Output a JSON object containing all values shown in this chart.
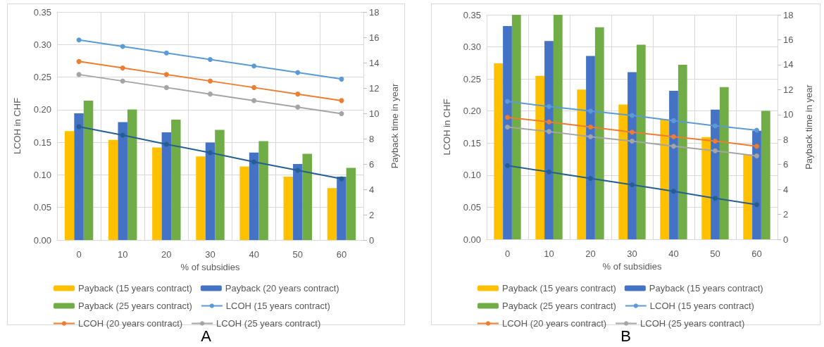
{
  "chart_data": [
    {
      "type": "bar",
      "title": "A",
      "xlabel": "% of subsidies",
      "ylabel": "LCOH in CHF",
      "y2label": "Payback time in year",
      "categories": [
        "0",
        "10",
        "20",
        "30",
        "40",
        "50",
        "60"
      ],
      "series": [
        {
          "name": "Payback (15 years contract)",
          "axis": "y2",
          "color": "#ffc000",
          "values": [
            8.6,
            7.9,
            7.3,
            6.6,
            5.8,
            5.0,
            4.1
          ]
        },
        {
          "name": "Payback (20 years contract)",
          "axis": "y2",
          "color": "#4472c4",
          "values": [
            10.0,
            9.3,
            8.5,
            7.7,
            6.9,
            6.0,
            5.0
          ]
        },
        {
          "name": "Payback (25 years contract)",
          "axis": "y2",
          "color": "#70ad47",
          "values": [
            11.0,
            10.3,
            9.5,
            8.7,
            7.8,
            6.8,
            5.7
          ]
        },
        {
          "name": "LCOH (15 years contract)",
          "type": "line",
          "color": "#5b9bd5",
          "values": [
            0.307,
            0.297,
            0.287,
            0.277,
            0.267,
            0.257,
            0.247
          ]
        },
        {
          "name": "LCOH (20 years contract)",
          "type": "line",
          "color": "#ed7d31",
          "values": [
            0.274,
            0.264,
            0.254,
            0.244,
            0.234,
            0.224,
            0.214
          ]
        },
        {
          "name": "LCOH (25 years contract)",
          "type": "line",
          "color": "#a5a5a5",
          "values": [
            0.254,
            0.244,
            0.234,
            0.224,
            0.214,
            0.204,
            0.194
          ]
        },
        {
          "type": "line",
          "color": "#255e91",
          "values": [
            0.174,
            0.161,
            0.147,
            0.134,
            0.12,
            0.107,
            0.094
          ]
        }
      ],
      "ylim": [
        0,
        0.35
      ],
      "yticks": [
        {
          "value": 0,
          "label": "0.00"
        },
        {
          "value": 0.05,
          "label": "0.05"
        },
        {
          "value": 0.1,
          "label": "0.10"
        },
        {
          "value": 0.15,
          "label": "0.15"
        },
        {
          "value": 0.2,
          "label": "0.20"
        },
        {
          "value": 0.25,
          "label": "0.25"
        },
        {
          "value": 0.3,
          "label": "0.30"
        },
        {
          "value": 0.35,
          "label": "0.35"
        }
      ],
      "y2lim": [
        0,
        18
      ],
      "y2ticks": [
        0,
        2,
        4,
        6,
        8,
        10,
        12,
        14,
        16,
        18
      ],
      "grid": true,
      "legend": "bottom",
      "marker": "circle"
    },
    {
      "type": "bar",
      "title": "B",
      "xlabel": "% of subsidies",
      "ylabel": "LCOH in CHF",
      "y2label": "Payback time in year",
      "categories": [
        "0",
        "10",
        "20",
        "30",
        "40",
        "50",
        "60"
      ],
      "series": [
        {
          "name": "Payback (15 years contract)",
          "axis": "y2",
          "color": "#ffc000",
          "values": [
            14.1,
            13.1,
            12.0,
            10.8,
            9.6,
            8.2,
            6.8
          ]
        },
        {
          "name": "Payback (15 years contract)",
          "axis": "y2",
          "color": "#4472c4",
          "values": [
            17.1,
            15.9,
            14.7,
            13.4,
            11.9,
            10.4,
            8.7
          ]
        },
        {
          "name": "Payback (25 years contract)",
          "axis": "y2",
          "color": "#70ad47",
          "values": [
            18,
            18,
            17.0,
            15.6,
            14.0,
            12.2,
            10.3
          ]
        },
        {
          "name": "LCOH (15 years contract)",
          "type": "line",
          "color": "#5b9bd5",
          "values": [
            0.215,
            0.207,
            0.2,
            0.193,
            0.185,
            0.177,
            0.17
          ]
        },
        {
          "name": "LCOH (20 years contract)",
          "type": "line",
          "color": "#ed7d31",
          "values": [
            0.19,
            0.183,
            0.175,
            0.167,
            0.16,
            0.153,
            0.145
          ]
        },
        {
          "name": "LCOH (25 years contract)",
          "type": "line",
          "color": "#a5a5a5",
          "values": [
            0.175,
            0.168,
            0.16,
            0.153,
            0.145,
            0.138,
            0.13
          ]
        },
        {
          "type": "line",
          "color": "#255e91",
          "values": [
            0.115,
            0.105,
            0.095,
            0.085,
            0.075,
            0.064,
            0.054
          ]
        }
      ],
      "ylim": [
        0,
        0.35
      ],
      "yticks": [
        {
          "value": 0,
          "label": "0.00"
        },
        {
          "value": 0.05,
          "label": "0.05"
        },
        {
          "value": 0.1,
          "label": "0.10"
        },
        {
          "value": 0.15,
          "label": "0.15"
        },
        {
          "value": 0.2,
          "label": "0.20"
        },
        {
          "value": 0.25,
          "label": "0.25"
        },
        {
          "value": 0.3,
          "label": "0.30"
        },
        {
          "value": 0.35,
          "label": "0.35"
        }
      ],
      "y2lim": [
        0,
        18
      ],
      "y2ticks": [
        0,
        2,
        4,
        6,
        8,
        10,
        12,
        14,
        16,
        18
      ],
      "grid": true,
      "legend": "bottom",
      "marker": "circle"
    }
  ]
}
